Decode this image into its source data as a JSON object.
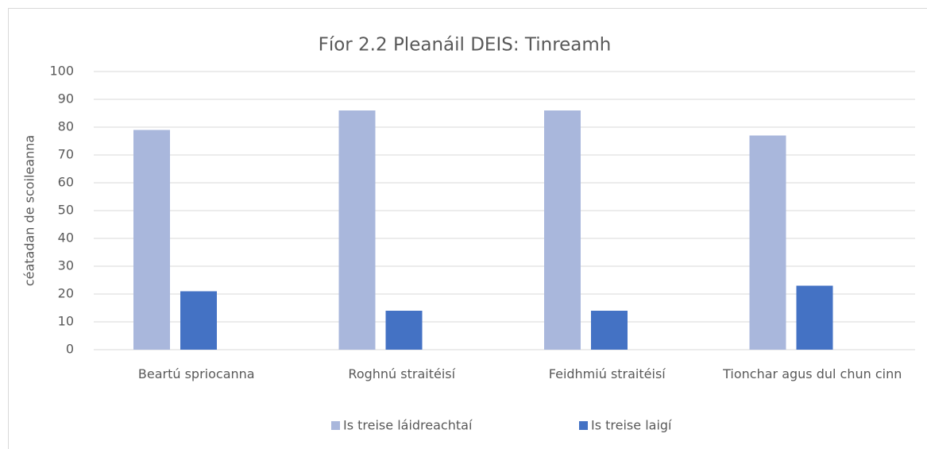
{
  "chart_data": {
    "type": "bar",
    "title": "Fíor 2.2 Pleanáil DEIS: Tinreamh",
    "y_axis_label": "céatadan de scoileanna",
    "categories": [
      "Beartú spriocanna",
      "Roghnú straitéisí",
      "Feidhmiú straitéisí",
      "Tionchar agus dul chun cinn"
    ],
    "series": [
      {
        "name": "Is treise láidreachtaí",
        "color": "#a9b7dc",
        "values": [
          79,
          86,
          86,
          77
        ]
      },
      {
        "name": "Is treise laigí",
        "color": "#4472c4",
        "values": [
          21,
          14,
          14,
          23
        ]
      }
    ],
    "ylim": [
      0,
      100
    ],
    "yticks": [
      0,
      10,
      20,
      30,
      40,
      50,
      60,
      70,
      80,
      90,
      100
    ],
    "grid": true,
    "legend": "bottom"
  }
}
